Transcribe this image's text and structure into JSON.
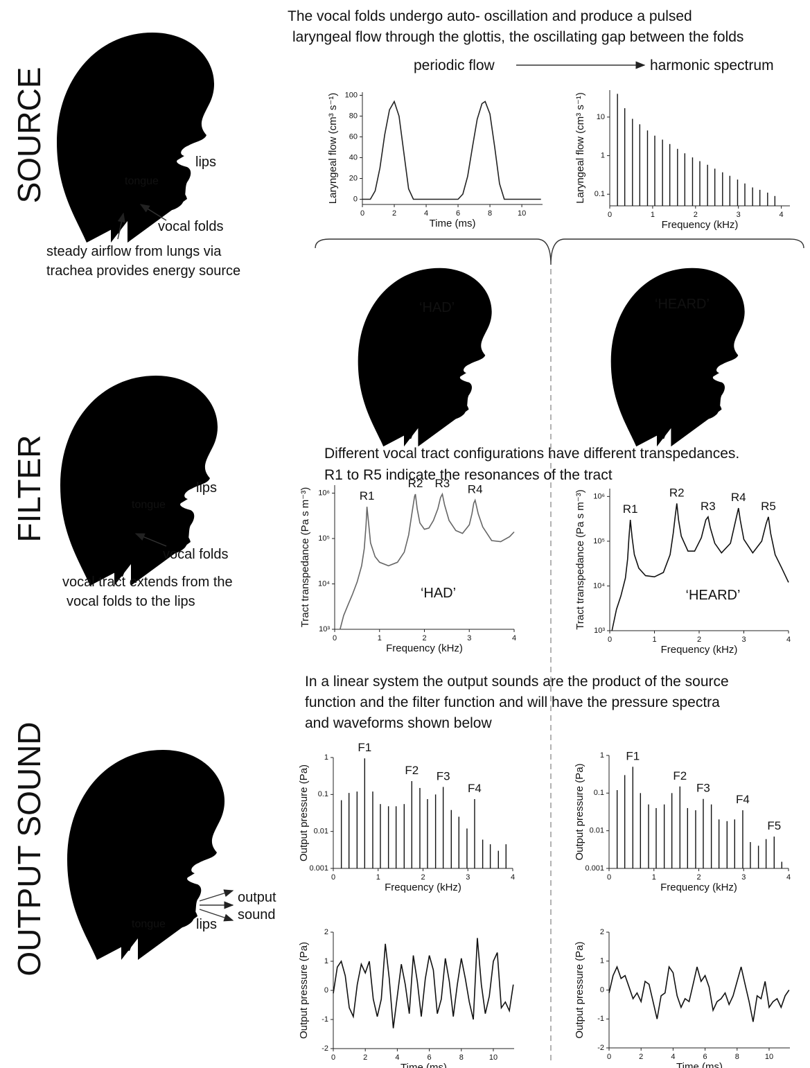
{
  "sections": {
    "source": "SOURCE",
    "filter": "FILTER",
    "output": "OUTPUT SOUND"
  },
  "source": {
    "caption": [
      "The vocal folds undergo auto- oscillation and produce a pulsed",
      "laryngeal flow through the glottis, the oscillating gap between the folds"
    ],
    "arrow_from": "periodic flow",
    "arrow_to": "harmonic spectrum",
    "head": {
      "lips": "lips",
      "tongue": "tongue",
      "vocal_folds": "vocal folds",
      "note": [
        "steady airflow from lungs via",
        "trachea  provides energy source"
      ]
    }
  },
  "filter": {
    "heads": [
      "‘HAD’",
      "‘HEARD’"
    ],
    "caption": [
      "Different vocal tract configurations have different transpedances.",
      "R1 to R5 indicate the resonances of the tract"
    ],
    "head": {
      "lips": "lips",
      "tongue": "tongue",
      "vocal_folds": "vocal folds",
      "note": [
        "vocal tract extends from the",
        "vocal folds to the lips"
      ]
    }
  },
  "output": {
    "caption": [
      "In a linear system the  output sounds are the product of the source",
      "function and the filter function and will have the  pressure spectra",
      "and waveforms shown below"
    ],
    "head": {
      "output": "output",
      "sound": "sound",
      "tongue": "tongue",
      "lips": "lips"
    }
  },
  "chart_data": [
    {
      "type": "line",
      "xlabel": "Time  (ms)",
      "ylabel": "Laryngeal  flow (cm³ s⁻¹)",
      "color": "#222",
      "x": [
        0,
        0.5,
        0.8,
        1.1,
        1.4,
        1.7,
        2.0,
        2.3,
        2.6,
        2.9,
        3.2,
        4,
        5,
        6,
        6.3,
        6.6,
        6.9,
        7.2,
        7.5,
        7.7,
        8.0,
        8.3,
        8.6,
        8.9,
        10,
        11.2
      ],
      "values": [
        0,
        0,
        8,
        30,
        62,
        86,
        94,
        80,
        45,
        10,
        0,
        0,
        0,
        0,
        5,
        22,
        50,
        77,
        92,
        94,
        82,
        50,
        15,
        0,
        0,
        0
      ],
      "xlim": [
        0,
        11.3
      ],
      "xticks": [
        0,
        2,
        4,
        6,
        8,
        10
      ],
      "ylim": [
        -5,
        103
      ],
      "yticks": [
        0,
        20,
        40,
        60,
        80,
        100
      ]
    },
    {
      "type": "bar",
      "ylog": true,
      "xlabel": "Frequency  (kHz)",
      "ylabel": "Laryngeal  flow (cm³ s⁻¹)",
      "color": "#111",
      "x": [
        0.18,
        0.35,
        0.53,
        0.7,
        0.88,
        1.05,
        1.23,
        1.4,
        1.58,
        1.75,
        1.93,
        2.1,
        2.28,
        2.45,
        2.63,
        2.8,
        2.98,
        3.15,
        3.33,
        3.5,
        3.68,
        3.85
      ],
      "values": [
        40,
        17,
        9,
        6.5,
        4.5,
        3.3,
        2.6,
        2.0,
        1.5,
        1.15,
        0.9,
        0.72,
        0.58,
        0.46,
        0.37,
        0.3,
        0.24,
        0.19,
        0.15,
        0.13,
        0.11,
        0.09
      ],
      "xlim": [
        0,
        4.2
      ],
      "xticks": [
        0,
        1,
        2,
        3,
        4
      ],
      "ylim": [
        0.05,
        50
      ],
      "yticks": [
        0.1,
        1,
        10
      ]
    },
    {
      "type": "line",
      "ylog": true,
      "xlabel": "Frequency  (kHz)",
      "ylabel": "Tract  transpedance (Pa s m⁻³)",
      "label": "‘HAD’",
      "color": "#666",
      "x": [
        0.12,
        0.2,
        0.3,
        0.4,
        0.5,
        0.6,
        0.66,
        0.7,
        0.72,
        0.75,
        0.8,
        0.9,
        1.0,
        1.2,
        1.4,
        1.55,
        1.65,
        1.72,
        1.78,
        1.8,
        1.84,
        1.9,
        2.0,
        2.1,
        2.2,
        2.3,
        2.36,
        2.4,
        2.45,
        2.55,
        2.7,
        2.85,
        3.0,
        3.06,
        3.1,
        3.13,
        3.2,
        3.3,
        3.5,
        3.7,
        3.9,
        4.0
      ],
      "values": [
        1000,
        2000,
        3500,
        6000,
        11000,
        25000,
        60000,
        200000,
        500000,
        250000,
        80000,
        40000,
        30000,
        25000,
        30000,
        50000,
        120000,
        350000,
        850000,
        950000,
        450000,
        220000,
        160000,
        170000,
        250000,
        450000,
        800000,
        950000,
        550000,
        250000,
        150000,
        130000,
        200000,
        350000,
        600000,
        700000,
        350000,
        180000,
        90000,
        85000,
        110000,
        140000
      ],
      "xlim": [
        0,
        4
      ],
      "xticks": [
        0,
        1,
        2,
        3,
        4
      ],
      "ylim": [
        1000,
        1500000
      ],
      "yticks": [
        {
          "value": 1000,
          "label": "10³"
        },
        {
          "value": 10000,
          "label": "10⁴"
        },
        {
          "value": 100000,
          "label": "10⁵"
        },
        {
          "value": 1000000,
          "label": "10⁶"
        }
      ],
      "annotations": [
        {
          "text": "R1",
          "x": 0.72,
          "y": 500000
        },
        {
          "text": "R2",
          "x": 1.8,
          "y": 950000
        },
        {
          "text": "R3",
          "x": 2.4,
          "y": 950000
        },
        {
          "text": "R4",
          "x": 3.13,
          "y": 700000
        }
      ]
    },
    {
      "type": "line",
      "ylog": true,
      "xlabel": "Frequency  (kHz)",
      "ylabel": "Tract  transpedance (Pa s m⁻³)",
      "label": "‘HEARD’",
      "color": "#111",
      "x": [
        0.05,
        0.15,
        0.25,
        0.35,
        0.4,
        0.43,
        0.46,
        0.5,
        0.55,
        0.65,
        0.8,
        1.0,
        1.2,
        1.35,
        1.42,
        1.47,
        1.5,
        1.54,
        1.6,
        1.75,
        1.9,
        2.05,
        2.15,
        2.2,
        2.25,
        2.35,
        2.5,
        2.7,
        2.82,
        2.88,
        2.92,
        3.0,
        3.2,
        3.4,
        3.5,
        3.55,
        3.6,
        3.7,
        3.85,
        4.0
      ],
      "values": [
        1000,
        3000,
        6000,
        15000,
        40000,
        120000,
        300000,
        120000,
        50000,
        25000,
        17000,
        16000,
        20000,
        50000,
        150000,
        400000,
        700000,
        300000,
        130000,
        60000,
        60000,
        120000,
        300000,
        350000,
        200000,
        90000,
        55000,
        90000,
        300000,
        550000,
        300000,
        110000,
        55000,
        100000,
        250000,
        350000,
        150000,
        50000,
        25000,
        12000
      ],
      "xlim": [
        0,
        4
      ],
      "xticks": [
        0,
        1,
        2,
        3,
        4
      ],
      "ylim": [
        1000,
        1500000
      ],
      "yticks": [
        {
          "value": 1000,
          "label": "10³"
        },
        {
          "value": 10000,
          "label": "10⁴"
        },
        {
          "value": 100000,
          "label": "10⁵"
        },
        {
          "value": 1000000,
          "label": "10⁶"
        }
      ],
      "annotations": [
        {
          "text": "R1",
          "x": 0.46,
          "y": 300000
        },
        {
          "text": "R2",
          "x": 1.5,
          "y": 700000
        },
        {
          "text": "R3",
          "x": 2.2,
          "y": 350000
        },
        {
          "text": "R4",
          "x": 2.88,
          "y": 550000
        },
        {
          "text": "R5",
          "x": 3.55,
          "y": 350000
        }
      ]
    },
    {
      "type": "bar",
      "ylog": true,
      "xlabel": "Frequency  (kHz)",
      "ylabel": "Output pressure  (Pa)",
      "color": "#111",
      "x": [
        0.18,
        0.35,
        0.53,
        0.7,
        0.88,
        1.05,
        1.23,
        1.4,
        1.58,
        1.75,
        1.93,
        2.1,
        2.28,
        2.45,
        2.63,
        2.8,
        2.98,
        3.15,
        3.33,
        3.5,
        3.68,
        3.85
      ],
      "values": [
        0.07,
        0.11,
        0.12,
        0.95,
        0.12,
        0.055,
        0.048,
        0.048,
        0.055,
        0.23,
        0.15,
        0.075,
        0.1,
        0.16,
        0.038,
        0.025,
        0.012,
        0.075,
        0.006,
        0.0045,
        0.003,
        0.0045
      ],
      "xlim": [
        0,
        4
      ],
      "xticks": [
        0,
        1,
        2,
        3,
        4
      ],
      "ylim": [
        0.001,
        1
      ],
      "yticks": [
        0.001,
        0.01,
        0.1,
        1
      ],
      "annotations": [
        {
          "text": "F1",
          "x": 0.7,
          "y": 0.95
        },
        {
          "text": "F2",
          "x": 1.75,
          "y": 0.23
        },
        {
          "text": "F3",
          "x": 2.45,
          "y": 0.16
        },
        {
          "text": "F4",
          "x": 3.15,
          "y": 0.075
        }
      ]
    },
    {
      "type": "bar",
      "ylog": true,
      "xlabel": "Frequency  (kHz)",
      "ylabel": "Output pressure  (Pa)",
      "color": "#111",
      "x": [
        0.18,
        0.35,
        0.53,
        0.7,
        0.88,
        1.05,
        1.23,
        1.4,
        1.58,
        1.75,
        1.93,
        2.1,
        2.28,
        2.45,
        2.63,
        2.8,
        2.98,
        3.15,
        3.33,
        3.5,
        3.68,
        3.85
      ],
      "values": [
        0.12,
        0.3,
        0.5,
        0.1,
        0.05,
        0.04,
        0.05,
        0.1,
        0.15,
        0.04,
        0.035,
        0.07,
        0.05,
        0.02,
        0.018,
        0.02,
        0.035,
        0.005,
        0.004,
        0.006,
        0.007,
        0.0015
      ],
      "xlim": [
        0,
        4
      ],
      "xticks": [
        0,
        1,
        2,
        3,
        4
      ],
      "ylim": [
        0.001,
        1
      ],
      "yticks": [
        0.001,
        0.01,
        0.1,
        1
      ],
      "annotations": [
        {
          "text": "F1",
          "x": 0.53,
          "y": 0.5
        },
        {
          "text": "F2",
          "x": 1.58,
          "y": 0.15
        },
        {
          "text": "F3",
          "x": 2.1,
          "y": 0.07
        },
        {
          "text": "F4",
          "x": 2.98,
          "y": 0.035
        },
        {
          "text": "F5",
          "x": 3.68,
          "y": 0.007
        }
      ]
    },
    {
      "type": "line",
      "xlabel": "Time  (ms)",
      "ylabel": "Output pressure  (Pa)",
      "color": "#111",
      "x": [
        0,
        0.25,
        0.5,
        0.75,
        1,
        1.25,
        1.5,
        1.75,
        2,
        2.25,
        2.5,
        2.75,
        3,
        3.25,
        3.5,
        3.75,
        4,
        4.25,
        4.5,
        4.75,
        5,
        5.25,
        5.5,
        5.75,
        6,
        6.25,
        6.5,
        6.75,
        7,
        7.25,
        7.5,
        7.75,
        8,
        8.25,
        8.5,
        8.75,
        9,
        9.25,
        9.5,
        9.75,
        10,
        10.25,
        10.5,
        10.75,
        11,
        11.25
      ],
      "values": [
        -0.1,
        0.8,
        1.0,
        0.5,
        -0.6,
        -0.9,
        0.2,
        0.9,
        0.6,
        1.0,
        -0.3,
        -0.9,
        -0.3,
        1.6,
        0.4,
        -1.3,
        -0.2,
        0.9,
        0.2,
        -0.8,
        1.2,
        0.3,
        -0.9,
        0.4,
        1.2,
        0.7,
        -0.8,
        -0.3,
        1.1,
        0.3,
        -0.9,
        0.2,
        1.1,
        0.4,
        -0.4,
        -1.0,
        1.8,
        0.2,
        -0.8,
        -0.2,
        1.0,
        1.3,
        -0.6,
        -0.4,
        -0.7,
        0.2
      ],
      "xlim": [
        0,
        11.3
      ],
      "xticks": [
        0,
        2,
        4,
        6,
        8,
        10
      ],
      "ylim": [
        -2,
        2
      ],
      "yticks": [
        -2,
        -1,
        0,
        1,
        2
      ]
    },
    {
      "type": "line",
      "xlabel": "Time  (ms)",
      "ylabel": "Output pressure  (Pa)",
      "color": "#111",
      "x": [
        0,
        0.25,
        0.5,
        0.75,
        1,
        1.25,
        1.5,
        1.75,
        2,
        2.25,
        2.5,
        2.75,
        3,
        3.25,
        3.5,
        3.75,
        4,
        4.25,
        4.5,
        4.75,
        5,
        5.25,
        5.5,
        5.75,
        6,
        6.25,
        6.5,
        6.75,
        7,
        7.25,
        7.5,
        7.75,
        8,
        8.25,
        8.5,
        8.75,
        9,
        9.25,
        9.5,
        9.75,
        10,
        10.25,
        10.5,
        10.75,
        11,
        11.25
      ],
      "values": [
        -0.1,
        0.5,
        0.8,
        0.4,
        0.5,
        0.1,
        -0.3,
        -0.1,
        -0.4,
        0.3,
        0.2,
        -0.4,
        -1.0,
        -0.2,
        -0.1,
        0.8,
        0.6,
        -0.2,
        -0.6,
        -0.3,
        -0.4,
        0.2,
        0.8,
        0.3,
        0.5,
        0.1,
        -0.7,
        -0.4,
        -0.3,
        -0.1,
        -0.5,
        -0.2,
        0.3,
        0.8,
        0.2,
        -0.4,
        -1.1,
        -0.2,
        -0.3,
        0.3,
        -0.6,
        -0.4,
        -0.3,
        -0.6,
        -0.2,
        0.0
      ],
      "xlim": [
        0,
        11.3
      ],
      "xticks": [
        0,
        2,
        4,
        6,
        8,
        10
      ],
      "ylim": [
        -2,
        2
      ],
      "yticks": [
        -2,
        -1,
        0,
        1,
        2
      ]
    }
  ]
}
